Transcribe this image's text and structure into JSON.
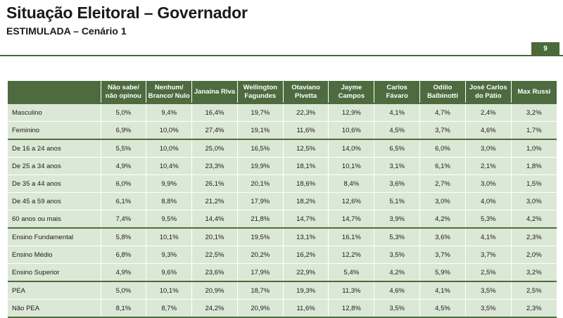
{
  "header": {
    "title": "Situação Eleitoral – Governador",
    "subtitle": "ESTIMULADA – Cenário 1",
    "page_number": "9"
  },
  "colors": {
    "accent": "#4d6b3f",
    "row_fill": "#dce8d6"
  },
  "table": {
    "columns": [
      "Não sabe/ não opinou",
      "Nenhum/ Branco/ Nulo",
      "Janaína Riva",
      "Wellington Fagundes",
      "Otaviano Pivetta",
      "Jayme Campos",
      "Carlos Fávaro",
      "Odilio Balbinotti",
      "José Carlos do Pátio",
      "Max Russi"
    ],
    "rows": [
      {
        "label": "Masculino",
        "values": [
          "5,0%",
          "9,4%",
          "16,4%",
          "19,7%",
          "22,3%",
          "12,9%",
          "4,1%",
          "4,7%",
          "2,4%",
          "3,2%"
        ]
      },
      {
        "label": "Feminino",
        "values": [
          "6,9%",
          "10,0%",
          "27,4%",
          "19,1%",
          "11,6%",
          "10,6%",
          "4,5%",
          "3,7%",
          "4,6%",
          "1,7%"
        ]
      },
      {
        "label": "De 16 a 24 anos",
        "values": [
          "5,5%",
          "10,0%",
          "25,0%",
          "16,5%",
          "12,5%",
          "14,0%",
          "6,5%",
          "6,0%",
          "3,0%",
          "1,0%"
        ]
      },
      {
        "label": "De 25 a 34 anos",
        "values": [
          "4,9%",
          "10,4%",
          "23,3%",
          "19,9%",
          "18,1%",
          "10,1%",
          "3,1%",
          "6,1%",
          "2,1%",
          "1,8%"
        ]
      },
      {
        "label": "De 35 a 44 anos",
        "values": [
          "6,0%",
          "9,9%",
          "26,1%",
          "20,1%",
          "18,6%",
          "8,4%",
          "3,6%",
          "2,7%",
          "3,0%",
          "1,5%"
        ]
      },
      {
        "label": "De 45 a 59 anos",
        "values": [
          "6,1%",
          "8,8%",
          "21,2%",
          "17,9%",
          "18,2%",
          "12,6%",
          "5,1%",
          "3,0%",
          "4,0%",
          "3,0%"
        ]
      },
      {
        "label": "60 anos ou mais",
        "values": [
          "7,4%",
          "9,5%",
          "14,4%",
          "21,8%",
          "14,7%",
          "14,7%",
          "3,9%",
          "4,2%",
          "5,3%",
          "4,2%"
        ]
      },
      {
        "label": "Ensino Fundamental",
        "values": [
          "5,8%",
          "10,1%",
          "20,1%",
          "19,5%",
          "13,1%",
          "16,1%",
          "5,3%",
          "3,6%",
          "4,1%",
          "2,3%"
        ]
      },
      {
        "label": "Ensino Médio",
        "values": [
          "6,8%",
          "9,3%",
          "22,5%",
          "20,2%",
          "16,2%",
          "12,2%",
          "3,5%",
          "3,7%",
          "3,7%",
          "2,0%"
        ]
      },
      {
        "label": "Ensino Superior",
        "values": [
          "4,9%",
          "9,6%",
          "23,6%",
          "17,9%",
          "22,9%",
          "5,4%",
          "4,2%",
          "5,9%",
          "2,5%",
          "3,2%"
        ]
      },
      {
        "label": "PEA",
        "values": [
          "5,0%",
          "10,1%",
          "20,9%",
          "18,7%",
          "19,3%",
          "11,3%",
          "4,6%",
          "4,1%",
          "3,5%",
          "2,5%"
        ]
      },
      {
        "label": "Não PEA",
        "values": [
          "8,1%",
          "8,7%",
          "24,2%",
          "20,9%",
          "11,6%",
          "12,8%",
          "3,5%",
          "4,5%",
          "3,5%",
          "2,3%"
        ]
      }
    ]
  }
}
